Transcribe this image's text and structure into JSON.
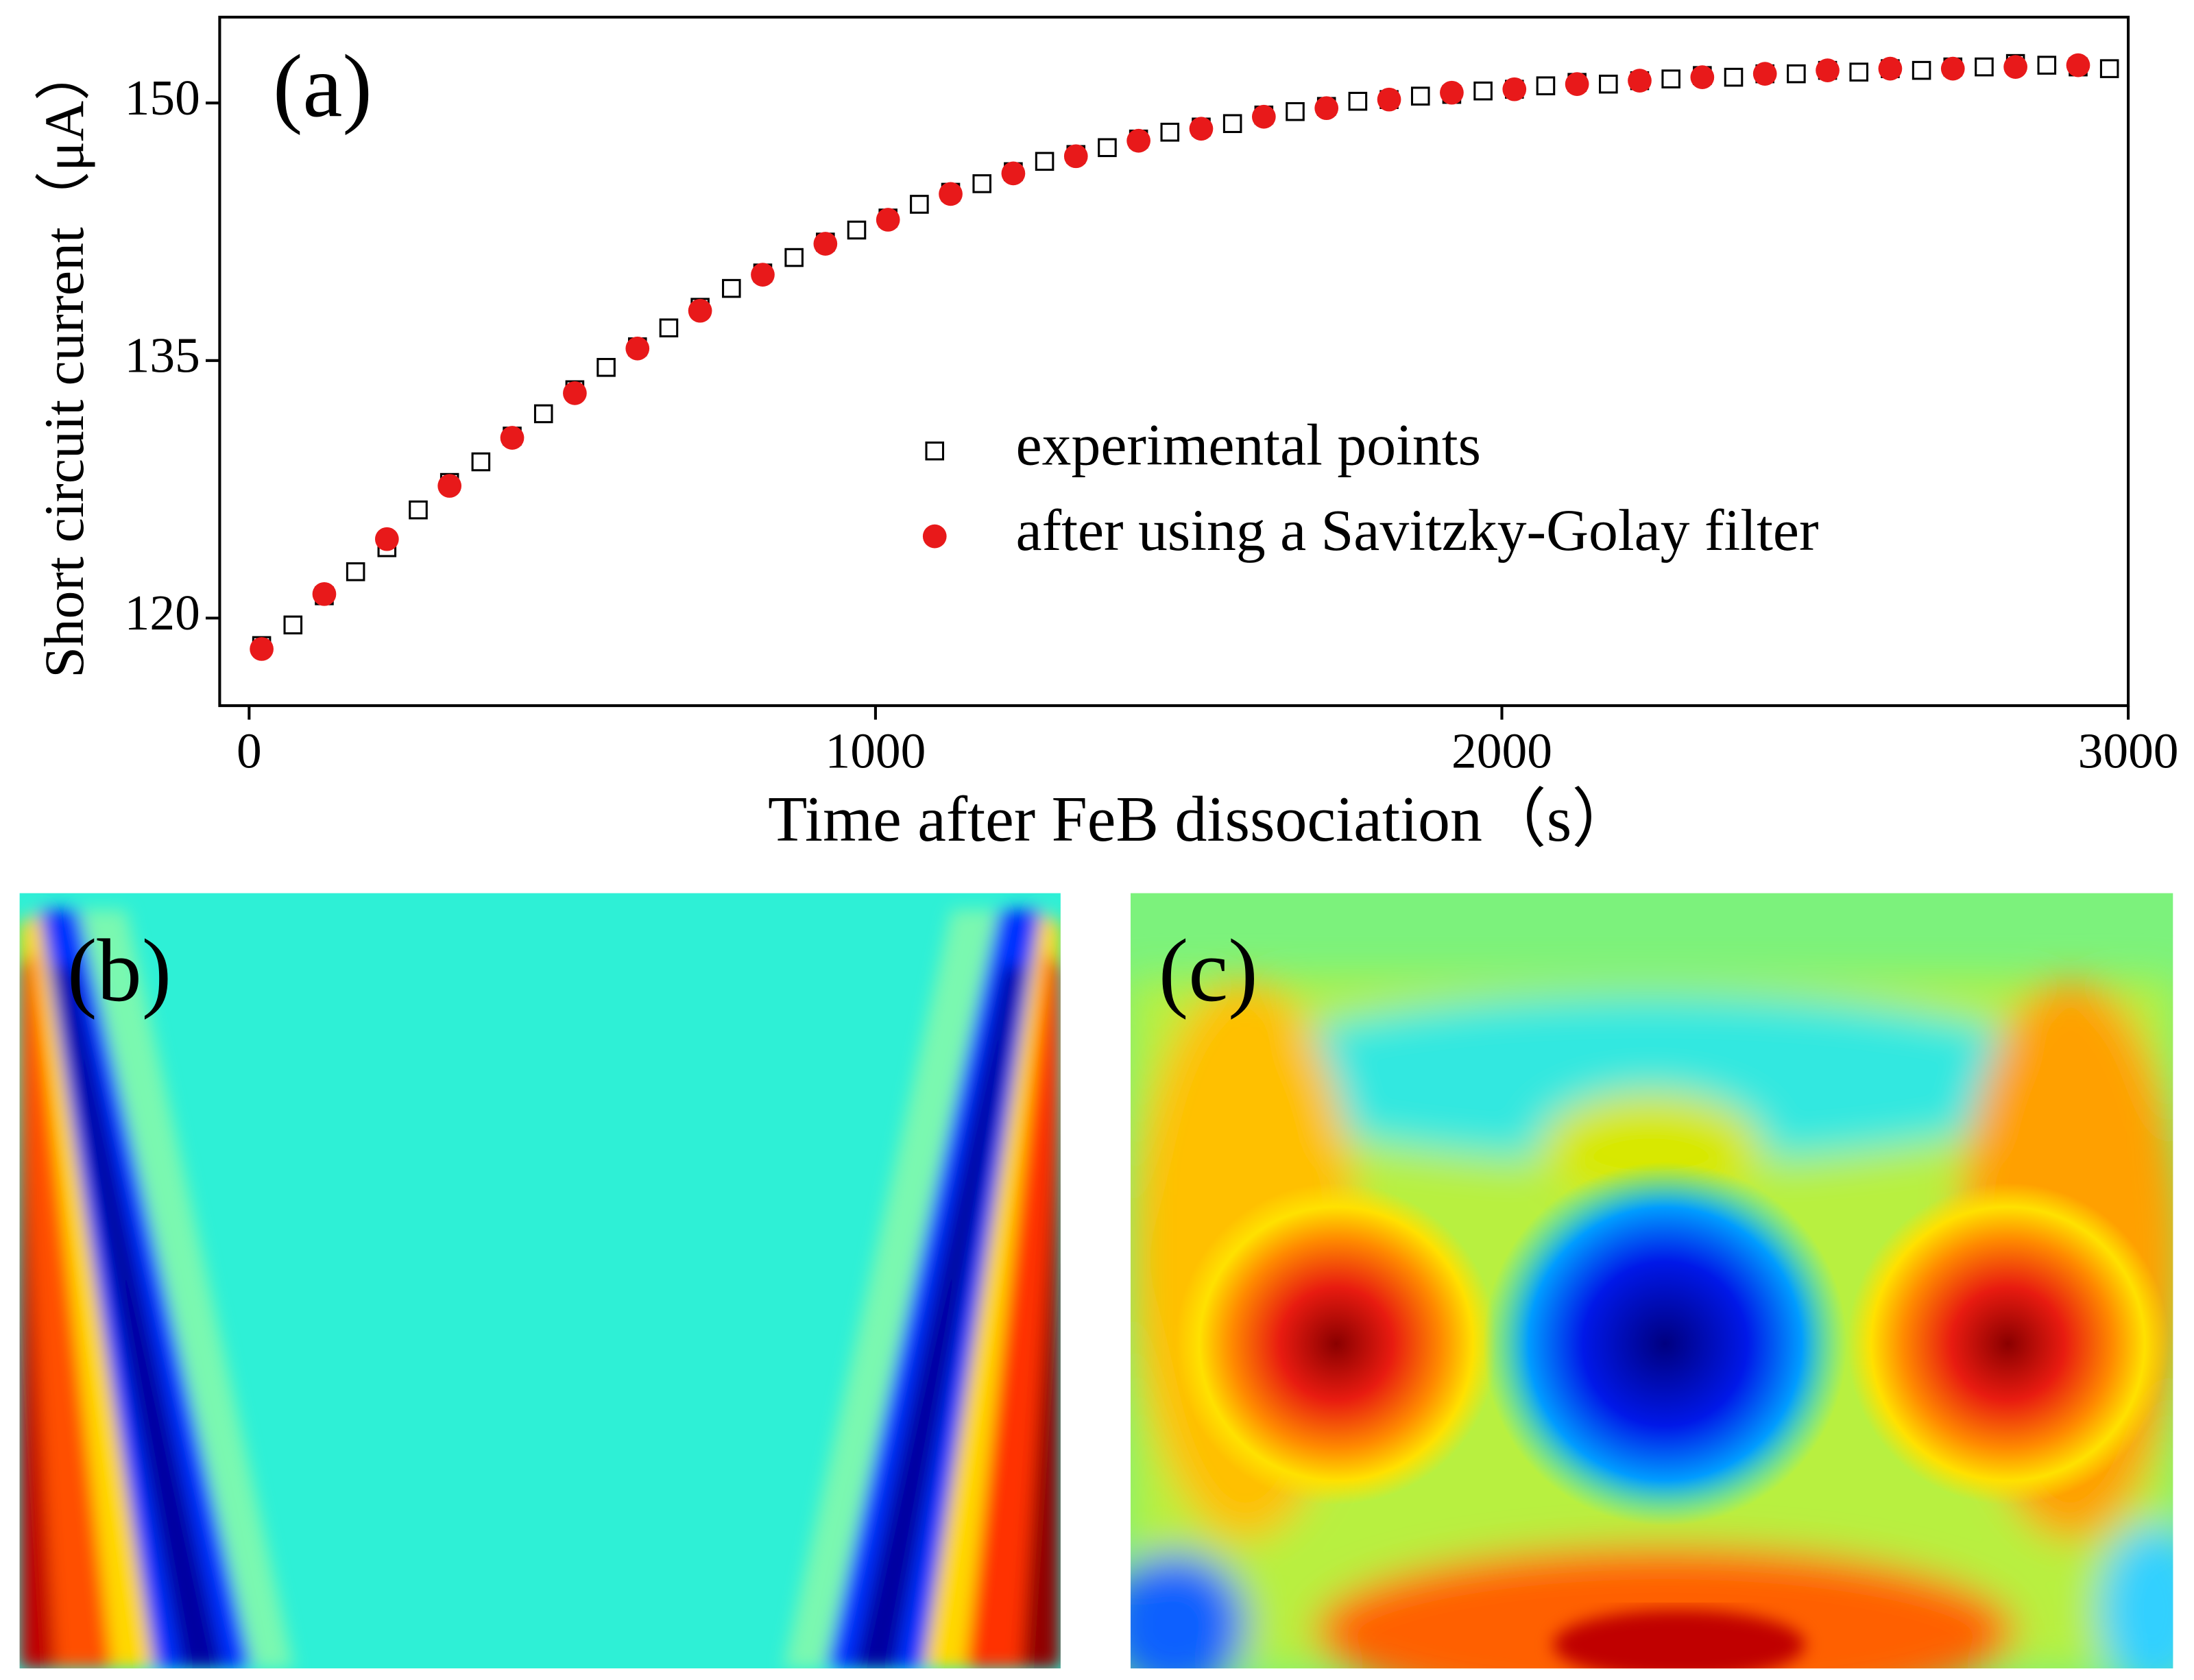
{
  "chart_data": {
    "type": "scatter",
    "panel_label": "(a)",
    "x_label": "Time after FeB dissociation（s）",
    "y_label": "Short circuit current（μA）",
    "xlim": [
      -47,
      3000
    ],
    "xticks": [
      0,
      1000,
      2000,
      3000
    ],
    "ylim": [
      114.9,
      155
    ],
    "yticks": [
      120,
      135,
      150
    ],
    "legend": "center-right",
    "series": [
      {
        "name": "experimental points",
        "color": "#000000",
        "marker": "open-square",
        "x": [
          20,
          70,
          120,
          170,
          220,
          270,
          320,
          370,
          420,
          470,
          520,
          570,
          620,
          670,
          720,
          770,
          820,
          870,
          920,
          970,
          1020,
          1070,
          1120,
          1170,
          1220,
          1270,
          1320,
          1370,
          1420,
          1470,
          1520,
          1570,
          1620,
          1670,
          1720,
          1770,
          1820,
          1870,
          1920,
          1970,
          2020,
          2070,
          2120,
          2170,
          2220,
          2270,
          2320,
          2370,
          2420,
          2470,
          2520,
          2570,
          2620,
          2670,
          2720,
          2770,
          2820,
          2870,
          2920,
          2970
        ],
        "values": [
          118.4,
          119.6,
          121.3,
          122.7,
          124.1,
          126.3,
          127.9,
          129.1,
          130.6,
          131.9,
          133.3,
          134.6,
          135.8,
          136.9,
          138.1,
          139.2,
          140.1,
          141.0,
          141.9,
          142.6,
          143.3,
          144.1,
          144.8,
          145.3,
          146.0,
          146.6,
          147.0,
          147.4,
          147.9,
          148.3,
          148.6,
          148.8,
          149.3,
          149.5,
          149.8,
          150.1,
          150.2,
          150.4,
          150.5,
          150.7,
          150.8,
          151.0,
          151.2,
          151.1,
          151.3,
          151.4,
          151.6,
          151.5,
          151.7,
          151.7,
          151.9,
          151.8,
          152.0,
          151.9,
          152.1,
          152.1,
          152.3,
          152.2,
          152.1,
          152.0
        ]
      },
      {
        "name": "after using a Savitzky-Golay filter",
        "color": "#e8191a",
        "marker": "filled-circle",
        "x": [
          20,
          120,
          220,
          320,
          420,
          520,
          620,
          720,
          820,
          920,
          1020,
          1120,
          1220,
          1320,
          1420,
          1520,
          1620,
          1720,
          1820,
          1920,
          2020,
          2120,
          2220,
          2320,
          2420,
          2520,
          2620,
          2720,
          2820,
          2920
        ],
        "values": [
          118.2,
          121.4,
          124.6,
          127.7,
          130.5,
          133.1,
          135.7,
          137.9,
          140.0,
          141.8,
          143.2,
          144.7,
          145.9,
          146.9,
          147.8,
          148.5,
          149.2,
          149.7,
          150.2,
          150.6,
          150.8,
          151.1,
          151.3,
          151.5,
          151.7,
          151.9,
          152.0,
          152.0,
          152.1,
          152.2
        ]
      }
    ]
  },
  "images": [
    {
      "label": "(b)"
    },
    {
      "label": "(c)"
    }
  ]
}
